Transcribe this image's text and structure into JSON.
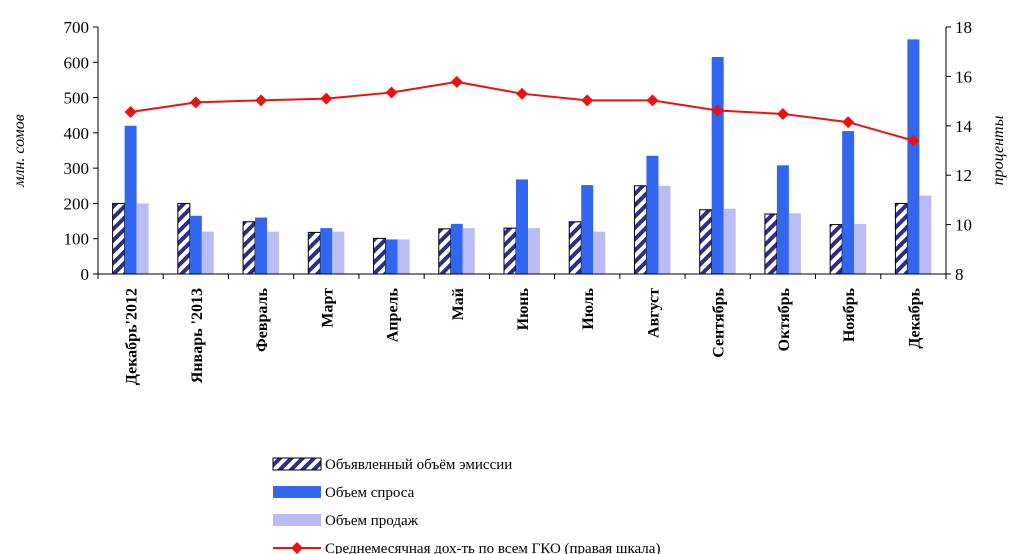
{
  "chart_data": {
    "type": "bar",
    "categories": [
      "Декабрь'2012",
      "Январь '2013",
      "Февраль",
      "Март",
      "Апрель",
      "Май",
      "Июнь",
      "Июль",
      "Август",
      "Сентябрь",
      "Октябрь",
      "Ноябрь",
      "Декабрь"
    ],
    "series": [
      {
        "name": "Объявленный объём эмиссии",
        "type": "bar",
        "axis": "left",
        "color": "#2e2e8a",
        "pattern": "diagonal-hatch",
        "values": [
          200,
          200,
          148,
          118,
          101,
          128,
          130,
          148,
          250,
          182,
          170,
          140,
          200
        ]
      },
      {
        "name": "Объем спроса",
        "type": "bar",
        "axis": "left",
        "color": "#3366ee",
        "values": [
          420,
          165,
          160,
          130,
          98,
          142,
          268,
          252,
          335,
          615,
          308,
          405,
          665
        ]
      },
      {
        "name": "Объем продаж",
        "type": "bar",
        "axis": "left",
        "color": "#bbbbf5",
        "values": [
          200,
          120,
          120,
          120,
          98,
          130,
          130,
          120,
          250,
          185,
          172,
          142,
          222
        ]
      },
      {
        "name": "Среднемесячная дох-ть по всем ГКО (правая шкала)",
        "type": "line",
        "axis": "right",
        "color": "#ee1111",
        "marker": "diamond",
        "values": [
          14.56,
          14.95,
          15.03,
          15.1,
          15.35,
          15.78,
          15.3,
          15.03,
          15.03,
          14.62,
          14.48,
          14.15,
          13.4
        ]
      }
    ],
    "ylabel": "млн. сомов",
    "y2label": "проценты",
    "ylim": [
      0,
      700
    ],
    "yticks": [
      0,
      100,
      200,
      300,
      400,
      500,
      600,
      700
    ],
    "y2lim": [
      8,
      18
    ],
    "y2ticks": [
      8,
      10,
      12,
      14,
      16,
      18
    ],
    "grid": false,
    "legend": "bottom"
  }
}
